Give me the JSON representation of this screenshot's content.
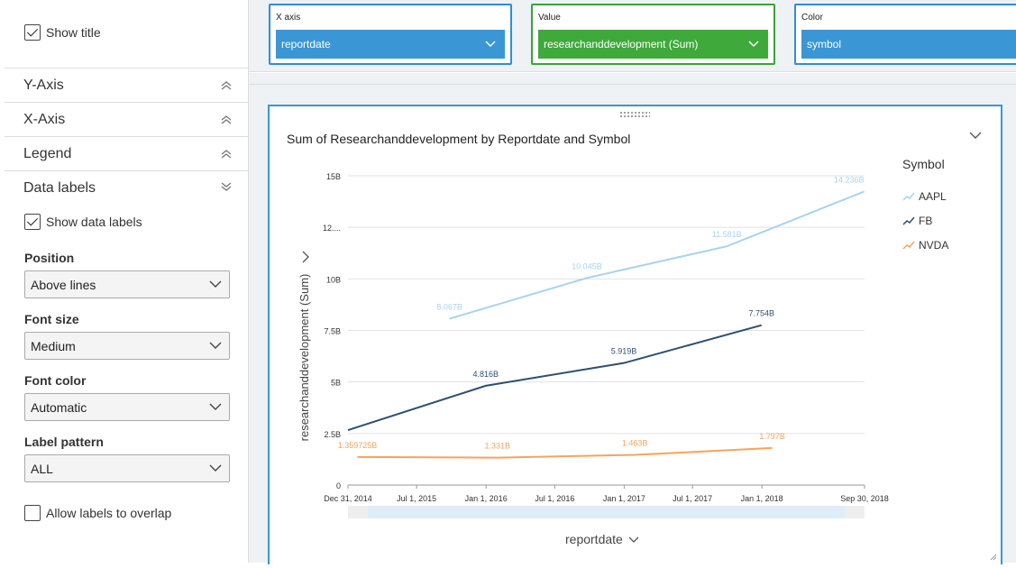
{
  "left_panel": {
    "show_title_label": "Show title",
    "sections": [
      {
        "label": "Y-Axis"
      },
      {
        "label": "X-Axis"
      },
      {
        "label": "Legend"
      },
      {
        "label": "Data labels"
      }
    ],
    "show_data_labels_label": "Show data labels",
    "position": {
      "label": "Position",
      "value": "Above lines"
    },
    "font_size": {
      "label": "Font size",
      "value": "Medium"
    },
    "font_color": {
      "label": "Font color",
      "value": "Automatic"
    },
    "label_pattern": {
      "label": "Label pattern",
      "value": "ALL"
    },
    "allow_overlap_label": "Allow labels to overlap"
  },
  "wells": {
    "x_axis": {
      "title": "X axis",
      "value": "reportdate"
    },
    "value": {
      "title": "Value",
      "value": "researchanddevelopment (Sum)"
    },
    "color": {
      "title": "Color",
      "value": "symbol"
    }
  },
  "visual": {
    "title": "Sum of Researchanddevelopment by Reportdate and Symbol",
    "legend_title": "Symbol",
    "x_axis_title": "reportdate",
    "y_axis_title": "researchanddevelopment (Sum)"
  },
  "chart_data": {
    "type": "line",
    "title": "Sum of Researchanddevelopment by Reportdate and Symbol",
    "xlabel": "reportdate",
    "ylabel": "researchanddevelopment (Sum)",
    "x_ticks": [
      "Dec 31, 2014",
      "Jul 1, 2015",
      "Jan 1, 2016",
      "Jul 1, 2016",
      "Jan 1, 2017",
      "Jul 1, 2017",
      "Jan 1, 2018",
      "Sep 30, 2018"
    ],
    "y_ticks": [
      "0",
      "2.5B",
      "5B",
      "7.5B",
      "10B",
      "12....",
      "15B"
    ],
    "ylim": [
      0,
      15000000000
    ],
    "xlim": [
      "2014-12-31",
      "2018-09-30"
    ],
    "legend_position": "right",
    "grid": true,
    "series": [
      {
        "name": "AAPL",
        "color": "#a7d3ee",
        "points": [
          {
            "x": "2015-09-26",
            "y": 8067000000
          },
          {
            "x": "2016-09-24",
            "y": 10045000000
          },
          {
            "x": "2017-09-30",
            "y": 11581000000
          },
          {
            "x": "2018-09-29",
            "y": 14236000000
          }
        ],
        "labels": [
          "8.067B",
          "10.045B",
          "11.581B",
          "14.236B"
        ]
      },
      {
        "name": "FB",
        "color": "#2f4f6f",
        "points": [
          {
            "x": "2014-12-31",
            "y": 2666000000
          },
          {
            "x": "2015-12-31",
            "y": 4816000000
          },
          {
            "x": "2016-12-31",
            "y": 5919000000
          },
          {
            "x": "2017-12-31",
            "y": 7754000000
          }
        ],
        "labels": [
          "",
          "4.816B",
          "5.919B",
          "7.754B"
        ]
      },
      {
        "name": "NVDA",
        "color": "#f7a35c",
        "points": [
          {
            "x": "2015-01-25",
            "y": 1359725000
          },
          {
            "x": "2016-01-31",
            "y": 1331000000
          },
          {
            "x": "2017-01-29",
            "y": 1463000000
          },
          {
            "x": "2018-01-28",
            "y": 1797000000
          }
        ],
        "labels": [
          "1.359725B",
          "1.331B",
          "1.463B",
          "1.797B"
        ]
      }
    ]
  }
}
